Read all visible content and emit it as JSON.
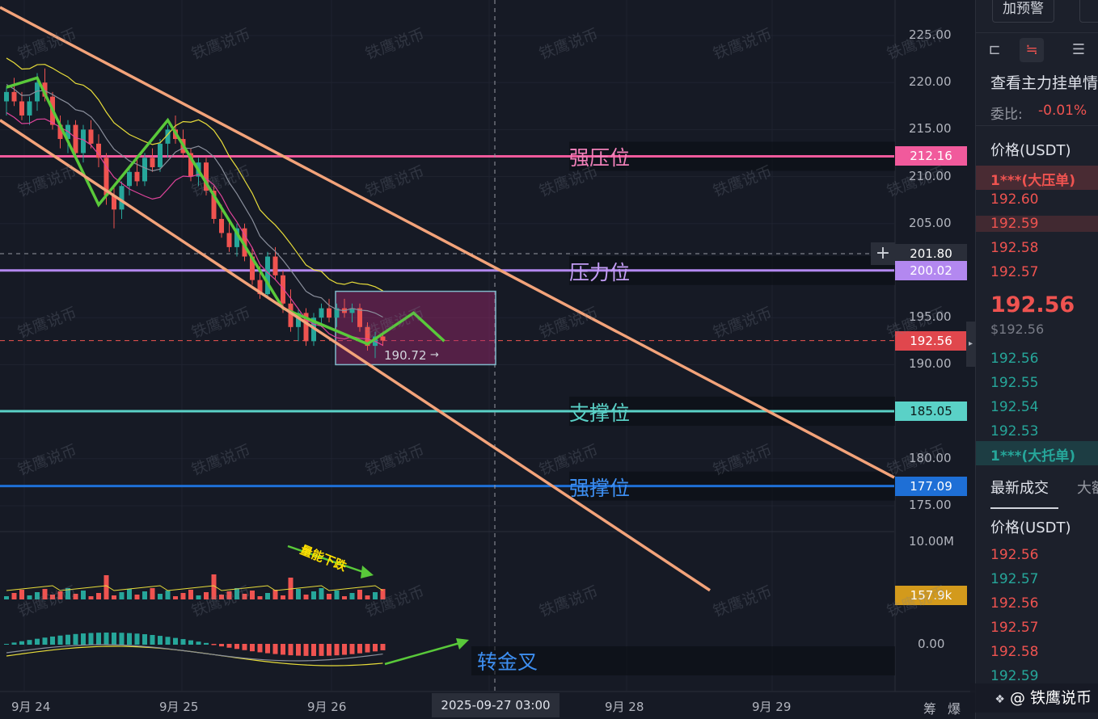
{
  "chart_data": {
    "type": "candlestick",
    "symbol_pair_unit": "USDT",
    "y_axis": {
      "range": [
        163.0,
        227.0
      ],
      "ticks": [
        "225.00",
        "220.00",
        "215.00",
        "210.00",
        "205.00",
        "200.00",
        "195.00",
        "190.00",
        "185.00",
        "180.00",
        "175.00"
      ],
      "scale": "linear"
    },
    "x_axis": {
      "ticks": [
        "9月 24",
        "9月 25",
        "9月 26",
        "9月 28",
        "9月 29"
      ],
      "crosshair_label": "2025-09-27 03:00"
    },
    "price_tags": [
      {
        "value": "212.16",
        "color": "#f15a9c"
      },
      {
        "value": "201.80",
        "color": "#2a2e39"
      },
      {
        "value": "200.02",
        "color": "#b388f0"
      },
      {
        "value": "192.56",
        "color": "#e0474d"
      },
      {
        "value": "185.05",
        "color": "#5ad1c7"
      },
      {
        "value": "177.09",
        "color": "#1e6fd6"
      },
      {
        "value": "157.9k",
        "color": "#d39a1c"
      }
    ],
    "levels": [
      {
        "label": "强压位",
        "price": 212.16,
        "color": "#f15a9c",
        "text_color": "#f080b8"
      },
      {
        "label": "压力位",
        "price": 200.02,
        "color": "#b388f0",
        "text_color": "#c39cf5"
      },
      {
        "label": "支撑位",
        "price": 185.05,
        "color": "#5ad1c7",
        "text_color": "#5ad1c7"
      },
      {
        "label": "强撑位",
        "price": 177.09,
        "color": "#1e6fd6",
        "text_color": "#3d8ef0"
      }
    ],
    "annotations": {
      "box_low_label": "190.72",
      "volume_note": "量能下跌",
      "macd_note": "转金叉",
      "volume_axis_label": "10.00M",
      "macd_axis_label": "0.00"
    },
    "candles": [
      [
        218.0,
        219.5,
        216.5,
        219.0
      ],
      [
        219.0,
        220.5,
        217.5,
        218.0
      ],
      [
        218.0,
        219.0,
        216.0,
        216.5
      ],
      [
        216.5,
        218.5,
        215.5,
        218.0
      ],
      [
        218.0,
        221.0,
        217.0,
        220.0
      ],
      [
        220.0,
        221.5,
        218.0,
        218.5
      ],
      [
        218.5,
        219.0,
        215.0,
        215.5
      ],
      [
        215.5,
        216.5,
        213.0,
        214.0
      ],
      [
        214.0,
        216.0,
        212.5,
        215.5
      ],
      [
        215.5,
        216.0,
        212.0,
        212.5
      ],
      [
        212.5,
        215.5,
        211.5,
        215.0
      ],
      [
        215.0,
        216.0,
        213.0,
        213.5
      ],
      [
        213.5,
        214.5,
        211.0,
        212.0
      ],
      [
        212.0,
        212.5,
        207.0,
        208.0
      ],
      [
        208.0,
        209.0,
        204.5,
        206.5
      ],
      [
        206.5,
        209.5,
        205.5,
        209.0
      ],
      [
        209.0,
        211.0,
        208.0,
        210.5
      ],
      [
        210.5,
        212.0,
        209.0,
        209.5
      ],
      [
        209.5,
        212.5,
        209.0,
        212.0
      ],
      [
        212.0,
        213.0,
        210.5,
        211.0
      ],
      [
        211.0,
        214.0,
        210.5,
        213.5
      ],
      [
        213.5,
        215.5,
        212.0,
        215.0
      ],
      [
        215.0,
        216.5,
        213.5,
        214.0
      ],
      [
        214.0,
        215.0,
        212.0,
        212.5
      ],
      [
        212.5,
        213.0,
        209.5,
        210.0
      ],
      [
        210.0,
        212.0,
        209.0,
        211.5
      ],
      [
        211.5,
        212.0,
        208.0,
        208.5
      ],
      [
        208.5,
        209.0,
        205.0,
        205.5
      ],
      [
        205.5,
        207.0,
        203.5,
        204.0
      ],
      [
        204.0,
        205.5,
        202.0,
        202.5
      ],
      [
        202.5,
        205.0,
        201.5,
        204.5
      ],
      [
        204.5,
        205.0,
        201.0,
        201.5
      ],
      [
        201.5,
        202.5,
        198.5,
        199.0
      ],
      [
        199.0,
        200.5,
        197.0,
        197.5
      ],
      [
        197.5,
        202.0,
        197.0,
        201.5
      ],
      [
        201.5,
        202.5,
        199.0,
        199.5
      ],
      [
        199.5,
        200.0,
        195.5,
        196.5
      ],
      [
        196.5,
        198.0,
        193.5,
        194.0
      ],
      [
        194.0,
        196.0,
        192.5,
        195.5
      ],
      [
        195.5,
        196.0,
        192.0,
        192.5
      ],
      [
        192.5,
        195.5,
        192.0,
        195.0
      ],
      [
        195.0,
        196.5,
        194.0,
        196.0
      ],
      [
        196.0,
        197.0,
        194.5,
        195.0
      ],
      [
        195.0,
        196.5,
        194.0,
        196.0
      ],
      [
        196.0,
        197.0,
        195.0,
        195.5
      ],
      [
        195.5,
        196.5,
        194.5,
        196.0
      ],
      [
        196.0,
        196.5,
        193.5,
        194.0
      ],
      [
        194.0,
        194.5,
        191.5,
        192.0
      ],
      [
        192.0,
        193.5,
        190.7,
        193.0
      ],
      [
        193.0,
        193.5,
        192.0,
        192.56
      ]
    ],
    "zigzag": [
      [
        0,
        219.5
      ],
      [
        4,
        220.5
      ],
      [
        12,
        207.0
      ],
      [
        21,
        216.0
      ],
      [
        36,
        196.0
      ],
      [
        47,
        192.2
      ],
      [
        53,
        195.5
      ],
      [
        57,
        192.5
      ]
    ]
  },
  "panel": {
    "alert_button": "加预警",
    "depth_title": "查看主力挂单情",
    "ratio_label": "委比:",
    "ratio_value": "-0.01%",
    "price_header": "价格(USDT)",
    "big_ask": "1***(大压单)",
    "asks": [
      "192.60",
      "192.59",
      "192.58",
      "192.57"
    ],
    "last_price": "192.56",
    "last_price_usd": "$192.56",
    "bids": [
      "192.56",
      "192.55",
      "192.54",
      "192.53"
    ],
    "big_bid": "1***(大托单)",
    "tab_latest": "最新成交",
    "tab_big": "大额",
    "trades_header": "价格(USDT)",
    "trades": [
      {
        "price": "192.56",
        "side": "sell"
      },
      {
        "price": "192.57",
        "side": "buy"
      },
      {
        "price": "192.56",
        "side": "sell"
      },
      {
        "price": "192.57",
        "side": "sell"
      },
      {
        "price": "192.58",
        "side": "sell"
      },
      {
        "price": "192.59",
        "side": "buy"
      }
    ]
  },
  "footer": {
    "chip_label": "筹",
    "burst_label": "爆",
    "brand": "@ 铁鹰说币"
  },
  "watermark": "铁鹰说币",
  "colors": {
    "up": "#26a69a",
    "down": "#ef5350",
    "channel": "#f3a37a",
    "zigzag": "#59c93a",
    "bg": "#161a25"
  }
}
